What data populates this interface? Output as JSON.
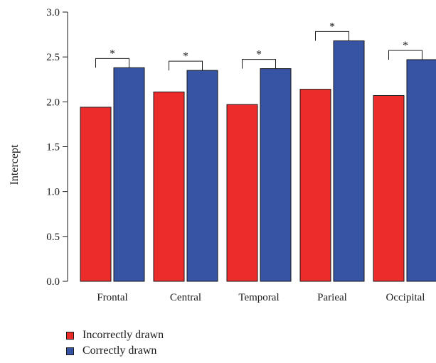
{
  "chart_data": {
    "type": "bar",
    "title": "",
    "xlabel": "",
    "ylabel": "Intercept",
    "ylim": [
      0,
      3.0
    ],
    "yticks": [
      "0.0",
      "0.5",
      "1.0",
      "1.5",
      "2.0",
      "2.5",
      "3.0"
    ],
    "categories": [
      "Frontal",
      "Central",
      "Temporal",
      "Parieal",
      "Occipital"
    ],
    "series": [
      {
        "name": "Incorrectly drawn",
        "color": "#ec2b2b",
        "values": [
          1.94,
          2.11,
          1.97,
          2.14,
          2.07
        ]
      },
      {
        "name": "Correctly drawn",
        "color": "#3653a4",
        "values": [
          2.38,
          2.35,
          2.37,
          2.68,
          2.47
        ]
      }
    ],
    "significance": [
      "*",
      "*",
      "*",
      "*",
      "*"
    ],
    "grid": false,
    "legend_position": "bottom-left"
  }
}
